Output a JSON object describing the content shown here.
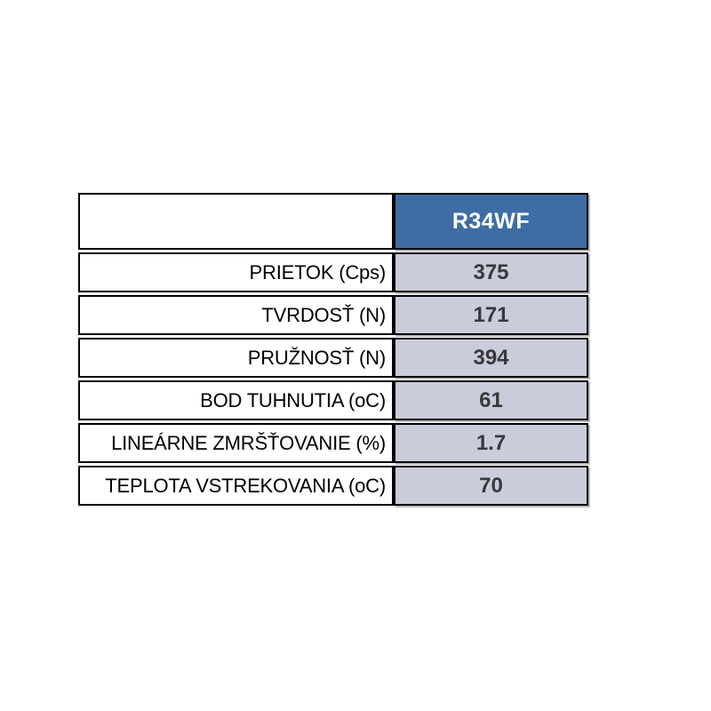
{
  "table": {
    "header": {
      "empty_label": "",
      "column_label": "R34WF"
    },
    "rows": [
      {
        "label": "PRIETOK (Cps)",
        "value": "375"
      },
      {
        "label": "TVRDOSŤ (N)",
        "value": "171"
      },
      {
        "label": "PRUŽNOSŤ (N)",
        "value": "394"
      },
      {
        "label": "BOD TUHNUTIA (oC)",
        "value": "61"
      },
      {
        "label": "LINEÁRNE ZMRŠŤOVANIE (%)",
        "value": "1.7"
      },
      {
        "label": "TEPLOTA VSTREKOVANIA (oC)",
        "value": "70"
      }
    ],
    "colors": {
      "header_bg": "#3E6DA5",
      "header_text": "#FFFFFF",
      "value_bg": "#CACCDC",
      "value_text": "#38383C",
      "label_text": "#000000",
      "border": "#000000"
    }
  }
}
